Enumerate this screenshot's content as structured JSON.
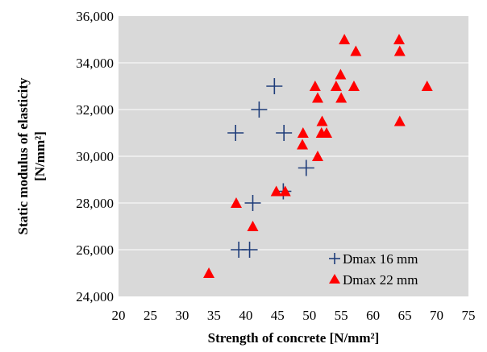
{
  "chart_data": {
    "type": "scatter",
    "xlabel": "Strength of concrete [N/mm²]",
    "ylabel_line1": "Static modulus of elasticity",
    "ylabel_line2": "[N/mm²]",
    "xlim": [
      20,
      75
    ],
    "ylim": [
      24000,
      36000
    ],
    "xticks": [
      "20",
      "25",
      "30",
      "35",
      "40",
      "45",
      "50",
      "55",
      "60",
      "65",
      "70",
      "75"
    ],
    "yticks": [
      "24,000",
      "26,000",
      "28,000",
      "30,000",
      "32,000",
      "34,000",
      "36,000"
    ],
    "grid": "horizontal",
    "legend_position": "bottom-right",
    "colors": {
      "plot_background": "#d9d9d9",
      "gridline": "#ffffff",
      "series_16": "#1f3d7a",
      "series_22": "#ff0000"
    },
    "series": [
      {
        "name": "Dmax 16 mm",
        "marker": "plus",
        "points": [
          [
            38.4,
            31000
          ],
          [
            42.1,
            32000
          ],
          [
            44.5,
            33000
          ],
          [
            46.0,
            31000
          ],
          [
            49.5,
            29500
          ],
          [
            45.9,
            28500
          ],
          [
            41.1,
            28000
          ],
          [
            38.9,
            26000
          ],
          [
            40.6,
            26000
          ]
        ]
      },
      {
        "name": "Dmax 22 mm",
        "marker": "triangle",
        "points": [
          [
            34.2,
            25000
          ],
          [
            41.1,
            27000
          ],
          [
            38.5,
            28000
          ],
          [
            44.8,
            28500
          ],
          [
            46.2,
            28500
          ],
          [
            48.9,
            30500
          ],
          [
            49.0,
            31000
          ],
          [
            51.3,
            30000
          ],
          [
            51.9,
            31000
          ],
          [
            52.0,
            31500
          ],
          [
            52.7,
            31000
          ],
          [
            50.9,
            33000
          ],
          [
            51.3,
            32500
          ],
          [
            54.2,
            33000
          ],
          [
            54.9,
            33500
          ],
          [
            55.0,
            32500
          ],
          [
            55.5,
            35000
          ],
          [
            57.0,
            33000
          ],
          [
            57.3,
            34500
          ],
          [
            64.1,
            35000
          ],
          [
            64.2,
            34500
          ],
          [
            64.2,
            31500
          ],
          [
            68.5,
            33000
          ]
        ]
      }
    ]
  }
}
